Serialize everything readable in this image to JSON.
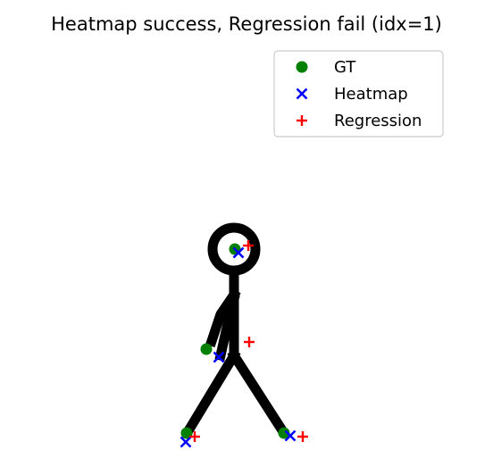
{
  "chart_data": {
    "type": "scatter",
    "title": "Heatmap success, Regression fail (idx=1)",
    "xlabel": "",
    "ylabel": "",
    "axes_visible": false,
    "grid": false,
    "legend_placement": "top-right",
    "background_image": "stick-figure",
    "series": [
      {
        "name": "GT",
        "marker": "circle",
        "color": "#008000",
        "points": [
          [
            263,
            279
          ],
          [
            231,
            391
          ],
          [
            209,
            485
          ],
          [
            318,
            485
          ]
        ]
      },
      {
        "name": "Heatmap",
        "marker": "x",
        "color": "#0000ff",
        "points": [
          [
            267,
            283
          ],
          [
            245,
            400
          ],
          [
            208,
            495
          ],
          [
            325,
            488
          ]
        ]
      },
      {
        "name": "Regression",
        "marker": "plus",
        "color": "#ff0000",
        "points": [
          [
            278,
            275
          ],
          [
            279,
            383
          ],
          [
            218,
            489
          ],
          [
            339,
            489
          ]
        ]
      }
    ]
  }
}
